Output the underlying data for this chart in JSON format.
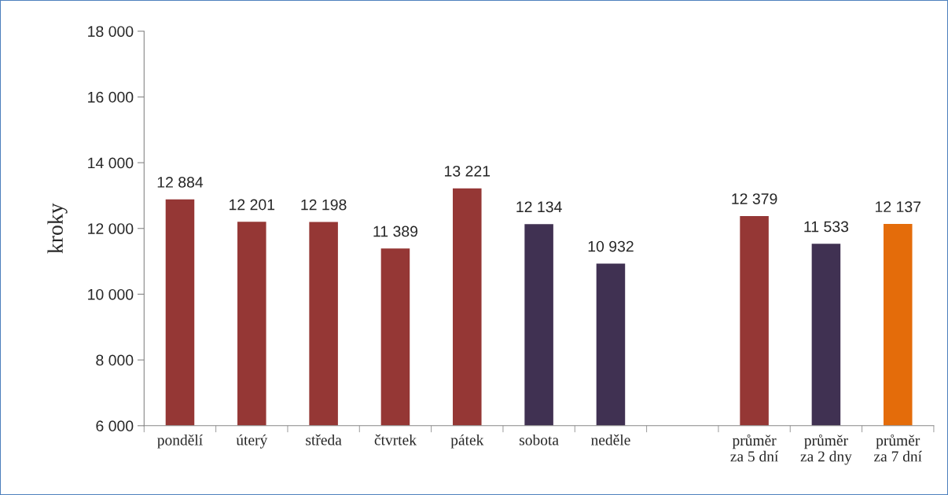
{
  "chart_data": {
    "type": "bar",
    "ylabel": "kroky",
    "categories": [
      "pondělí",
      "úterý",
      "středa",
      "čtvrtek",
      "pátek",
      "sobota",
      "neděle",
      null,
      "průměr\nza 5 dní",
      "průměr\nza 2 dny",
      "průměr\nza 7 dní"
    ],
    "values": [
      12884,
      12201,
      12198,
      11389,
      13221,
      12134,
      10932,
      null,
      12379,
      11533,
      12137
    ],
    "value_labels": [
      "12 884",
      "12 201",
      "12 198",
      "11 389",
      "13 221",
      "12 134",
      "10 932",
      null,
      "12 379",
      "11 533",
      "12 137"
    ],
    "colors": [
      "#953735",
      "#953735",
      "#953735",
      "#953735",
      "#953735",
      "#403152",
      "#403152",
      null,
      "#953735",
      "#403152",
      "#e46c0a"
    ],
    "ylim": [
      6000,
      18000
    ],
    "yticks": [
      {
        "value": 6000,
        "label": "6 000"
      },
      {
        "value": 8000,
        "label": "8 000"
      },
      {
        "value": 10000,
        "label": "10 000"
      },
      {
        "value": 12000,
        "label": "12 000"
      },
      {
        "value": 14000,
        "label": "14 000"
      },
      {
        "value": 16000,
        "label": "16 000"
      },
      {
        "value": 18000,
        "label": "18 000"
      }
    ],
    "grid": false
  }
}
